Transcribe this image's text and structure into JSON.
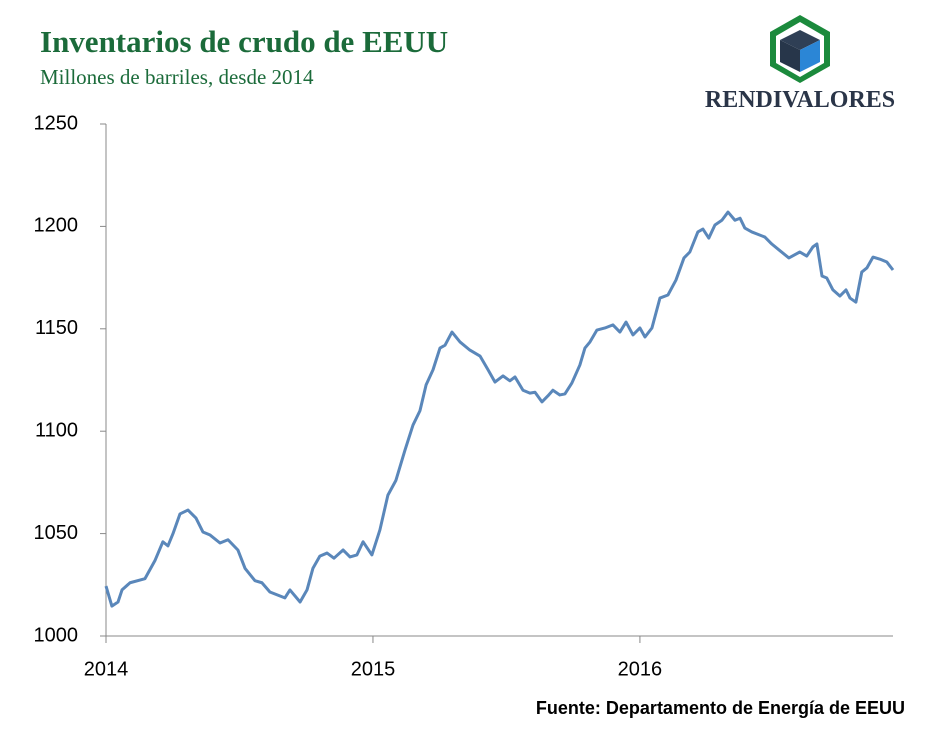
{
  "chart_data": {
    "type": "line",
    "title": "Inventarios de crudo de EEUU",
    "subtitle": "Millones de barriles, desde 2014",
    "logo_text": "RENDIVALORES",
    "source": "Fuente: Departamento de Energía de EEUU",
    "x": [
      2014.0,
      2014.022,
      2014.045,
      2014.06,
      2014.09,
      2014.146,
      2014.184,
      2014.213,
      2014.232,
      2014.251,
      2014.277,
      2014.307,
      2014.337,
      2014.363,
      2014.39,
      2014.427,
      2014.457,
      2014.494,
      2014.521,
      2014.558,
      2014.584,
      2014.614,
      2014.67,
      2014.689,
      2014.727,
      2014.753,
      2014.775,
      2014.801,
      2014.828,
      2014.854,
      2014.888,
      2014.914,
      2014.94,
      2014.963,
      2014.996,
      2015.026,
      2015.056,
      2015.086,
      2015.12,
      2015.15,
      2015.176,
      2015.199,
      2015.225,
      2015.251,
      2015.27,
      2015.296,
      2015.326,
      2015.363,
      2015.401,
      2015.431,
      2015.457,
      2015.487,
      2015.513,
      2015.532,
      2015.562,
      2015.588,
      2015.607,
      2015.633,
      2015.655,
      2015.674,
      2015.7,
      2015.719,
      2015.745,
      2015.775,
      2015.794,
      2015.813,
      2015.839,
      2015.869,
      2015.899,
      2015.925,
      2015.948,
      2015.974,
      2016.0,
      2016.019,
      2016.045,
      2016.075,
      2016.105,
      2016.135,
      2016.165,
      2016.187,
      2016.217,
      2016.236,
      2016.258,
      2016.281,
      2016.307,
      2016.33,
      2016.356,
      2016.375,
      2016.393,
      2016.419,
      2016.468,
      2016.494,
      2016.521,
      2016.558,
      2016.599,
      2016.625,
      2016.648,
      2016.663,
      2016.682,
      2016.7,
      2016.723,
      2016.749,
      2016.772,
      2016.787,
      2016.809,
      2016.831,
      2016.85,
      2016.873,
      2016.899,
      2016.925,
      2016.948
    ],
    "series": [
      {
        "name": "Inventarios",
        "color": "#5a87ba",
        "values": [
          1024.4,
          1014.6,
          1016.6,
          1022.5,
          1026,
          1028,
          1037,
          1046,
          1044,
          1050,
          1059.6,
          1061.5,
          1057.6,
          1050.8,
          1049.3,
          1045.4,
          1047,
          1042,
          1033,
          1027,
          1026,
          1021.5,
          1018.6,
          1022.5,
          1016.6,
          1022.5,
          1033,
          1039,
          1040.5,
          1038,
          1042,
          1038.6,
          1039.6,
          1046,
          1039.6,
          1051.8,
          1068.8,
          1076,
          1090.8,
          1103,
          1110,
          1122.6,
          1130,
          1140.6,
          1142,
          1148.4,
          1143.6,
          1139.6,
          1136.7,
          1130,
          1124,
          1127,
          1124.6,
          1126.5,
          1120,
          1118.6,
          1119,
          1114.3,
          1117.2,
          1120,
          1117.7,
          1118.2,
          1123.5,
          1132.3,
          1140.6,
          1143.6,
          1149.4,
          1150.4,
          1151.9,
          1148.4,
          1153.3,
          1147,
          1150.4,
          1146,
          1150.4,
          1165,
          1166.5,
          1173.8,
          1184.6,
          1187.5,
          1197.3,
          1198.7,
          1194.3,
          1200.7,
          1203,
          1207,
          1203,
          1204,
          1199.2,
          1197.3,
          1194.8,
          1191.4,
          1188.5,
          1184.6,
          1187.5,
          1185.5,
          1190,
          1191.4,
          1175.8,
          1174.8,
          1169,
          1166,
          1169,
          1165,
          1163,
          1177.7,
          1179.7,
          1185,
          1184,
          1182.6,
          1178.7
        ]
      }
    ],
    "xlim": [
      2014.0,
      2016.948
    ],
    "xticks": [
      2014,
      2015,
      2016
    ],
    "ylim": [
      1000,
      1250
    ],
    "yticks": [
      1000,
      1050,
      1100,
      1150,
      1200,
      1250
    ]
  }
}
